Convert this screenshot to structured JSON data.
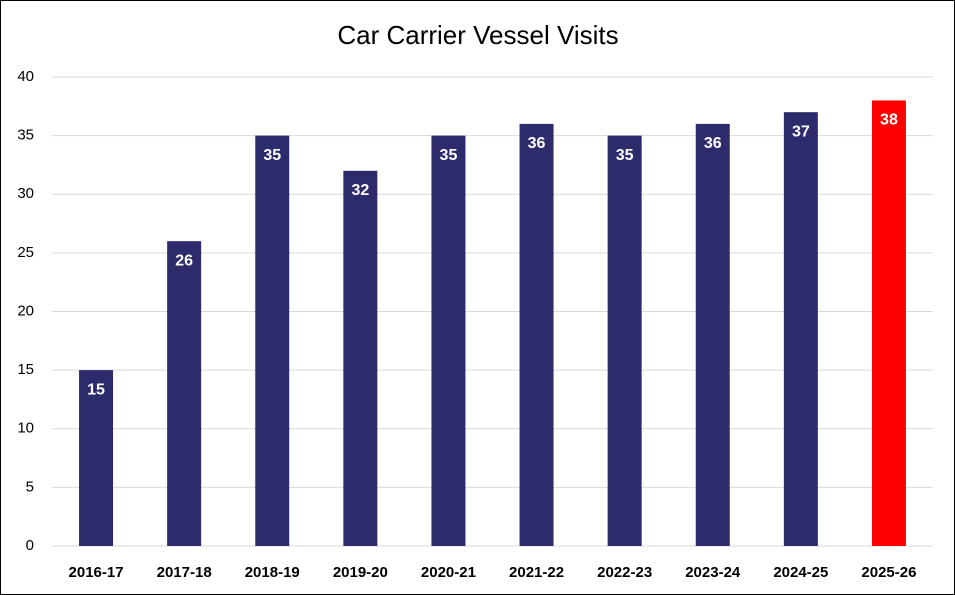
{
  "chart_data": {
    "type": "bar",
    "title": "Car Carrier Vessel Visits",
    "categories": [
      "2016-17",
      "2017-18",
      "2018-19",
      "2019-20",
      "2020-21",
      "2021-22",
      "2022-23",
      "2023-24",
      "2024-25",
      "2025-26"
    ],
    "values": [
      15,
      26,
      35,
      32,
      35,
      36,
      35,
      36,
      37,
      38
    ],
    "colors": [
      "#2e2b6c",
      "#2e2b6c",
      "#2e2b6c",
      "#2e2b6c",
      "#2e2b6c",
      "#2e2b6c",
      "#2e2b6c",
      "#2e2b6c",
      "#2e2b6c",
      "#ff0000"
    ],
    "ylim": [
      0,
      40
    ],
    "yticks": [
      0,
      5,
      10,
      15,
      20,
      25,
      30,
      35,
      40
    ],
    "grid": true
  }
}
